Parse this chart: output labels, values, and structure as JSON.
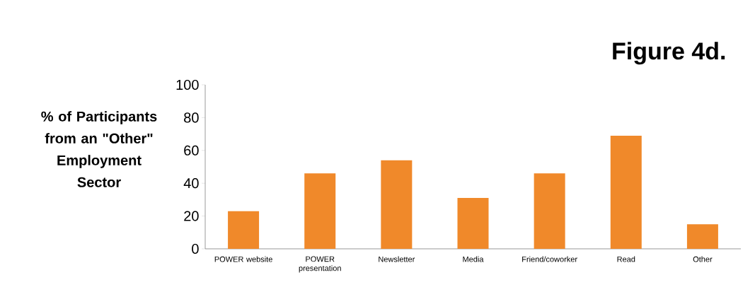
{
  "chart_data": {
    "type": "bar",
    "title": "Figure 4d.",
    "ylabel": "% of Participants from an \"Other\" Employment Sector",
    "categories": [
      "POWER website",
      "POWER presentation",
      "Newsletter",
      "Media",
      "Friend/coworker",
      "Read",
      "Other"
    ],
    "values": [
      23,
      46,
      54,
      31,
      46,
      69,
      15
    ],
    "color": "#f0892a",
    "ylim": [
      0,
      100
    ],
    "yticks": [
      0,
      20,
      40,
      60,
      80,
      100
    ]
  }
}
